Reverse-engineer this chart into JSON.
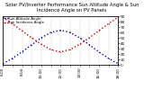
{
  "title": "Solar PV/Inverter Performance Sun Altitude Angle & Sun Incidence Angle on PV Panels",
  "x_hours": [
    6,
    7,
    8,
    9,
    10,
    11,
    12,
    13,
    14,
    15,
    16,
    17,
    18
  ],
  "sun_altitude": [
    2,
    12,
    24,
    37,
    50,
    60,
    64,
    60,
    50,
    37,
    24,
    12,
    2
  ],
  "sun_incidence": [
    88,
    76,
    63,
    50,
    38,
    28,
    24,
    28,
    38,
    50,
    63,
    76,
    88
  ],
  "altitude_color": "#0000cc",
  "incidence_color": "#cc0000",
  "bg_color": "#ffffff",
  "grid_color": "#bbbbbb",
  "ylim": [
    0,
    90
  ],
  "right_yticks": [
    0,
    10,
    20,
    30,
    40,
    50,
    60,
    70,
    80,
    90
  ],
  "right_yticklabels": [
    "0",
    "10",
    "20",
    "30",
    "40",
    "50",
    "60",
    "70",
    "80",
    "90"
  ],
  "xtick_labels": [
    "6:00",
    "",
    "8:00",
    "",
    "10:00",
    "",
    "12:00",
    "",
    "14:00",
    "",
    "16:00",
    "",
    "18:00"
  ],
  "title_fontsize": 3.8,
  "tick_fontsize": 3.0,
  "legend_labels": [
    "Sun Altitude Angle",
    "Sun Incidence Angle"
  ],
  "legend_fontsize": 2.8,
  "line_width": 1.0,
  "dot_size": 1.5
}
